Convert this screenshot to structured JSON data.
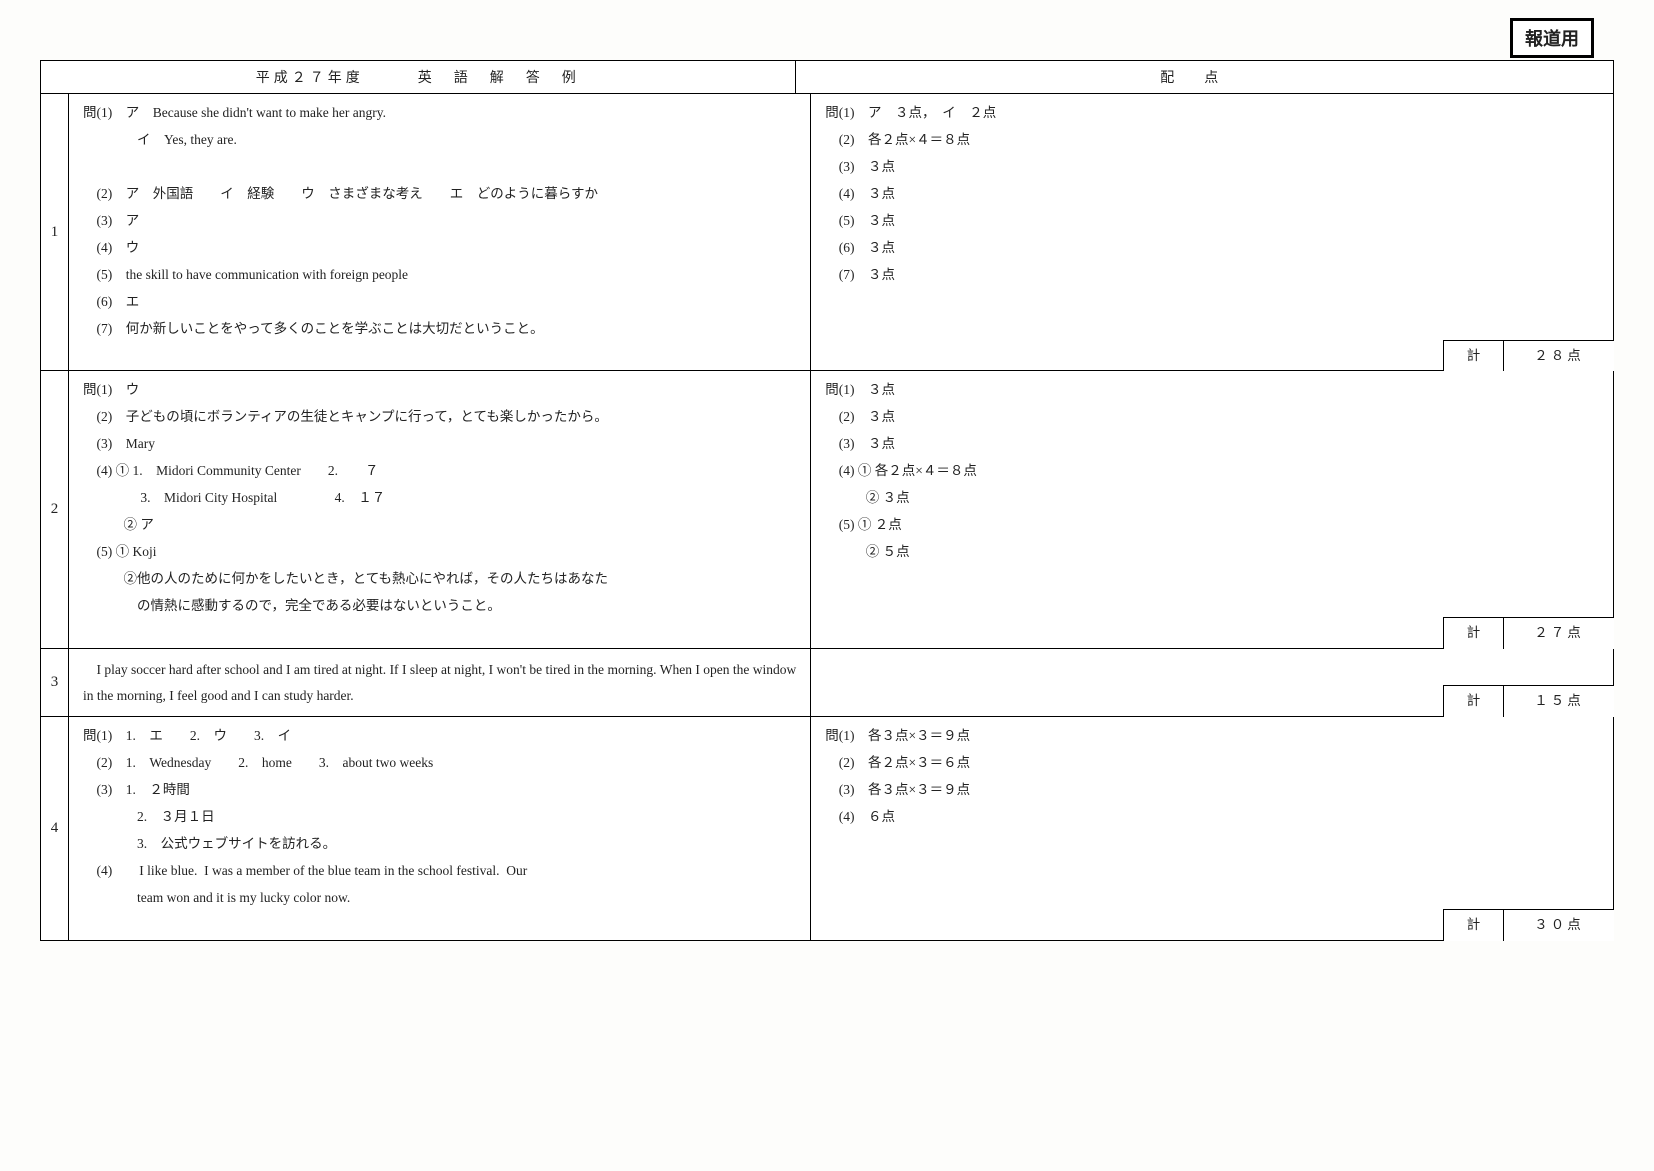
{
  "stamp": "報道用",
  "header": {
    "left": "平成２７年度　　　英　語　解　答　例",
    "right": "配点"
  },
  "sections": [
    {
      "num": "1",
      "answers": [
        "問(1)　ア　Because she didn't want to make her angry.",
        "　　　　イ　Yes, they are.",
        "",
        "　(2)　ア　外国語　　イ　経験　　ウ　さまざまな考え　　エ　どのように暮らすか",
        "　(3)　ア",
        "　(4)　ウ",
        "　(5)　the skill to have communication with foreign people",
        "　(6)　エ",
        "　(7)　何か新しいことをやって多くのことを学ぶことは大切だということ。"
      ],
      "points": [
        "問(1)　ア　３点，　イ　２点",
        "　(2)　各２点×４＝８点",
        "　(3)　３点",
        "　(4)　３点",
        "　(5)　３点",
        "　(6)　３点",
        "　(7)　３点"
      ],
      "subtotal_label": "計",
      "subtotal_value": "２８点"
    },
    {
      "num": "2",
      "answers": [
        "問(1)　ウ",
        "　(2)　子どもの頃にボランティアの生徒とキャンプに行って，とても楽しかったから。",
        "　(3)　Mary",
        "　(4) ① 1.　Midori Community Center　　2.　　７",
        "　　　　 3.　Midori City Hospital　　　　 4.　１７",
        "　　　② ア",
        "　(5) ① Koji",
        "　　　②他の人のために何かをしたいとき，とても熱心にやれば，その人たちはあなた",
        "　　　　の情熱に感動するので，完全である必要はないということ。"
      ],
      "points": [
        "問(1)　３点",
        "　(2)　３点",
        "　(3)　３点",
        "　(4) ① 各２点×４＝８点",
        "　　　② ３点",
        "　(5) ① ２点",
        "　　　② ５点"
      ],
      "subtotal_label": "計",
      "subtotal_value": "２７点"
    },
    {
      "num": "3",
      "essay": "　I play soccer hard after school and I am tired at night.  If I sleep at night, I won't be tired in the morning.  When I open the window in the morning, I feel good and I can study harder.",
      "points": [],
      "subtotal_label": "計",
      "subtotal_value": "１５点"
    },
    {
      "num": "4",
      "answers": [
        "問(1)　1.　エ　　2.　ウ　　3.　イ",
        "　(2)　1.　Wednesday　　2.　home　　3.　about two weeks",
        "　(3)　1.　２時間",
        "　　　　2.　３月１日",
        "　　　　3.　公式ウェブサイトを訪れる。",
        "　(4)　　I like blue.  I was a member of the blue team in the school festival.  Our",
        "　　　　team won and it is my lucky color now."
      ],
      "points": [
        "問(1)　各３点×３＝９点",
        "　(2)　各２点×３＝６点",
        "　(3)　各３点×３＝９点",
        "　(4)　６点"
      ],
      "subtotal_label": "計",
      "subtotal_value": "３０点",
      "last": true
    }
  ]
}
